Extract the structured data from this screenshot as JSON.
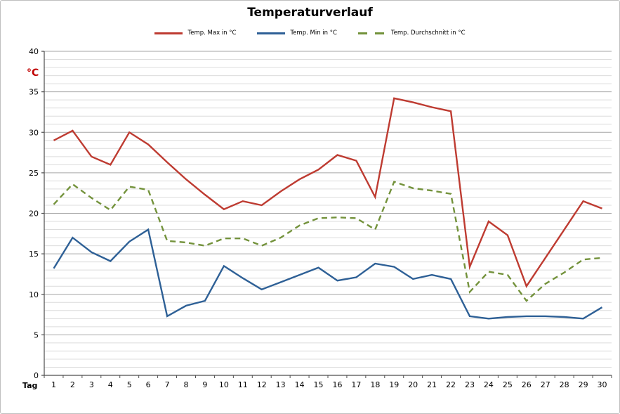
{
  "chart": {
    "title": "Temperaturverlauf"
  },
  "chart_data": {
    "type": "line",
    "title": "Temperaturverlauf",
    "xlabel": "Tag",
    "ylabel": "°C",
    "ylabel_color": "#c00000",
    "x": [
      1,
      2,
      3,
      4,
      5,
      6,
      7,
      8,
      9,
      10,
      11,
      12,
      13,
      14,
      15,
      16,
      17,
      18,
      19,
      20,
      21,
      22,
      23,
      24,
      25,
      26,
      27,
      28,
      29,
      30
    ],
    "series": [
      {
        "name": "Temp. Max in °C",
        "color": "#be3b31",
        "style": "solid",
        "values": [
          29,
          30.2,
          27,
          26,
          30,
          28.5,
          26.3,
          24.2,
          22.3,
          20.5,
          21.5,
          21,
          22.7,
          24.2,
          25.4,
          27.2,
          26.5,
          22,
          34.2,
          33.7,
          33.1,
          32.6,
          13.4,
          19,
          17.3,
          11,
          14.5,
          18,
          21.5,
          20.6
        ]
      },
      {
        "name": "Temp. Min in °C",
        "color": "#2e6096",
        "style": "solid",
        "values": [
          13.2,
          17,
          15.2,
          14.1,
          16.5,
          18,
          7.3,
          8.6,
          9.2,
          13.5,
          12,
          10.6,
          11.5,
          12.4,
          13.3,
          11.7,
          12.1,
          13.8,
          13.4,
          11.9,
          12.4,
          11.9,
          7.3,
          7,
          7.2,
          7.3,
          7.3,
          7.2,
          7,
          8.4
        ]
      },
      {
        "name": "Temp. Durchschnitt in °C",
        "color": "#73923b",
        "style": "dashed",
        "values": [
          21.1,
          23.6,
          21.9,
          20.4,
          23.3,
          22.9,
          16.6,
          16.4,
          16,
          16.9,
          16.9,
          16,
          17,
          18.5,
          19.4,
          19.5,
          19.4,
          18,
          23.9,
          23.1,
          22.8,
          22.4,
          10.3,
          12.8,
          12.4,
          9.2,
          11.3,
          12.7,
          14.3,
          14.5
        ]
      }
    ],
    "ylim": [
      0,
      40
    ],
    "y_ticks": [
      0,
      5,
      10,
      15,
      20,
      25,
      30,
      35,
      40
    ],
    "grid": {
      "minor_step": 1,
      "major_step": 5,
      "orientation": "horizontal"
    },
    "legend_position": "top",
    "markers": "none",
    "colors": {
      "grid_minor": "#dcdcdc",
      "grid_major": "#a6a6a6",
      "axis": "#4d4d4d",
      "tick_label": "#000000"
    }
  }
}
